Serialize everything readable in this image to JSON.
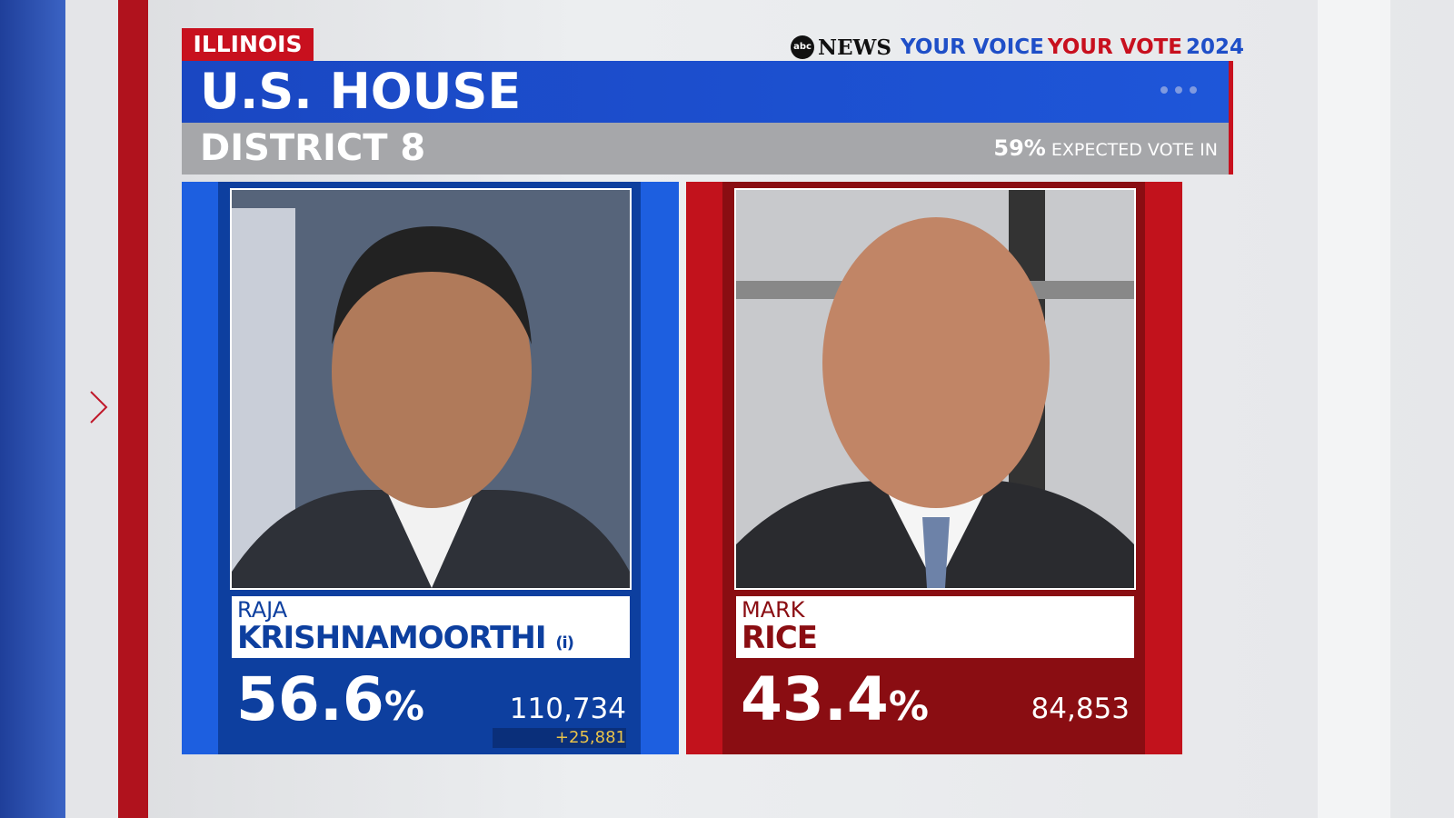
{
  "header": {
    "state": "ILLINOIS",
    "brand": {
      "logo": "abc",
      "network": "NEWS",
      "slogan_1": "YOUR VOICE",
      "slogan_2": "YOUR VOTE",
      "year": "2024"
    },
    "title": "U.S. HOUSE",
    "district": "DISTRICT 8",
    "expected": {
      "percent": "59%",
      "label": "EXPECTED VOTE IN"
    }
  },
  "candidates": [
    {
      "first_name": "RAJA",
      "last_name": "KRISHNAMOORTHI",
      "incumbent": "(i)",
      "percent": "56.6",
      "percent_sign": "%",
      "votes": "110,734",
      "lead": "+25,881"
    },
    {
      "first_name": "MARK",
      "last_name": "RICE",
      "percent": "43.4",
      "percent_sign": "%",
      "votes": "84,853"
    }
  ]
}
